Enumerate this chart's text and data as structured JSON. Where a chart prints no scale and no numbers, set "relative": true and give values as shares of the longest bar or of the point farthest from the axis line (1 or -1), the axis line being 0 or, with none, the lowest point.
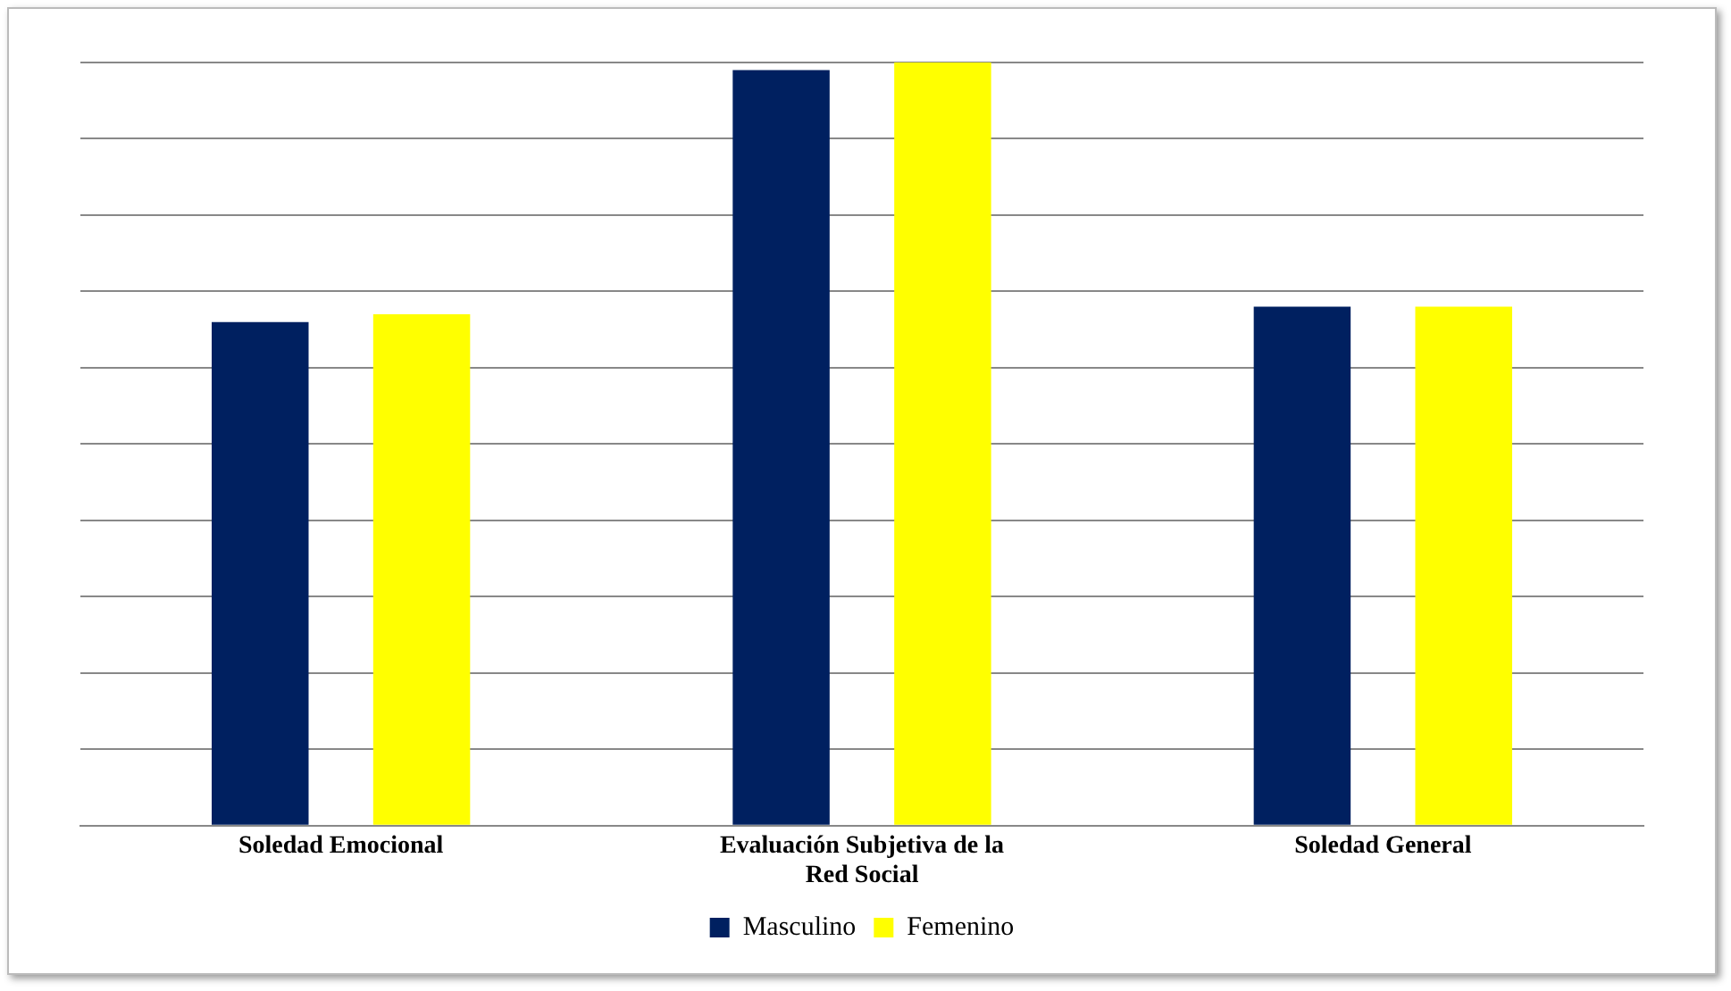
{
  "chart_data": {
    "type": "bar",
    "relative": true,
    "categories": [
      "Soledad Emocional",
      "Evaluación Subjetiva de la Red Social",
      "Soledad General"
    ],
    "series": [
      {
        "name": "Masculino",
        "color": "#002060",
        "values": [
          0.66,
          0.99,
          0.68
        ]
      },
      {
        "name": "Femenino",
        "color": "#ffff00",
        "values": [
          0.67,
          1,
          0.68
        ]
      }
    ],
    "grid": true,
    "legend": "bottom"
  }
}
